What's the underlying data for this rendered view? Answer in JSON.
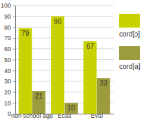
{
  "chart_data": {
    "type": "bar",
    "categories": [
      "non school age",
      "Ecas",
      "Eval"
    ],
    "series": [
      {
        "name": "cord[ɔ]",
        "color": "#c8d200",
        "values": [
          79,
          90,
          67
        ]
      },
      {
        "name": "cord[a]",
        "color": "#9c9c3c",
        "values": [
          21,
          10,
          33
        ]
      }
    ],
    "ylim": [
      0,
      100
    ],
    "yticks": [
      0,
      10,
      20,
      30,
      40,
      50,
      60,
      70,
      80,
      90,
      100
    ],
    "grid": true,
    "data_labels": true,
    "legend": "right"
  }
}
